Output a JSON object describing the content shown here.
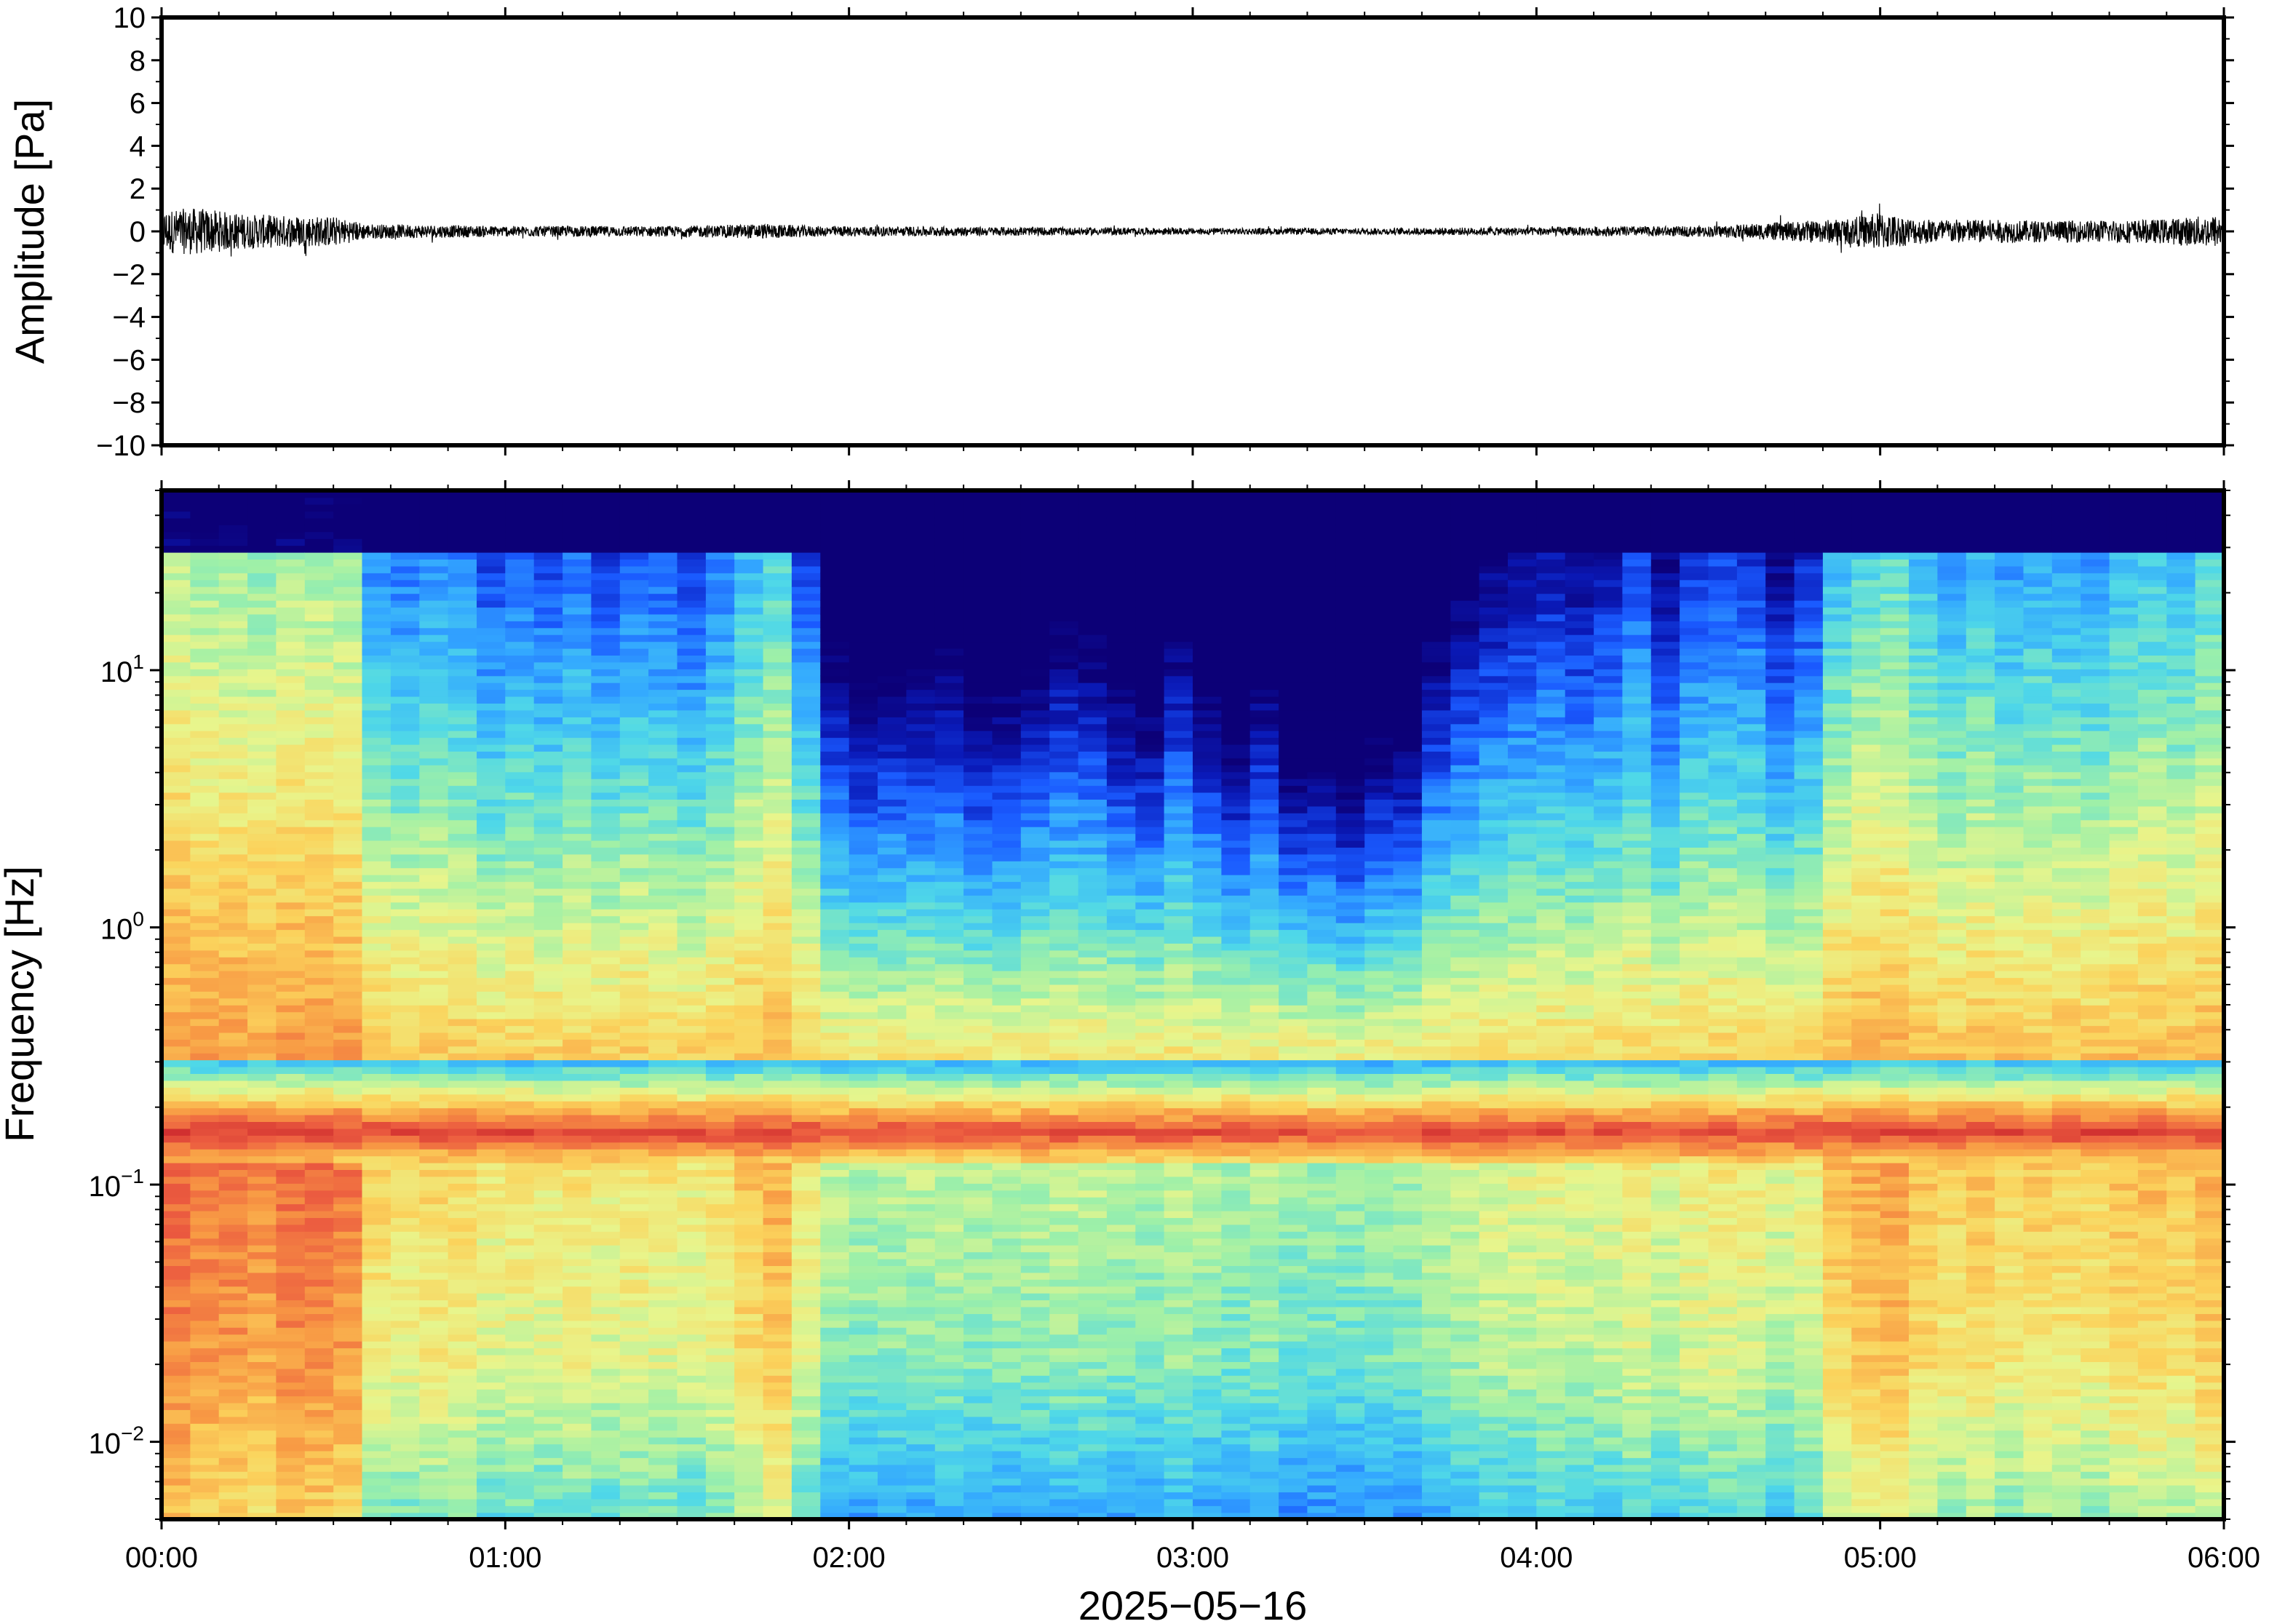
{
  "chart_data": [
    {
      "type": "line",
      "ylabel": "Amplitude [Pa]",
      "ylim": [
        -10,
        10
      ],
      "yticks": [
        "10",
        "8",
        "6",
        "4",
        "2",
        "0",
        "−2",
        "−4",
        "−6",
        "−8",
        "−10"
      ],
      "ytick_values": [
        10,
        8,
        6,
        4,
        2,
        0,
        -2,
        -4,
        -6,
        -8,
        -10
      ],
      "xlim_hours": [
        0,
        6
      ],
      "x_envelope_hours": [
        0,
        0.1,
        0.25,
        0.5,
        0.6,
        1.0,
        1.5,
        1.75,
        1.9,
        2.5,
        3.0,
        3.5,
        4.0,
        4.5,
        4.9,
        5.0,
        5.1,
        5.5,
        5.8,
        6.0
      ],
      "envelope_pa": [
        1.0,
        1.1,
        0.8,
        0.7,
        0.35,
        0.25,
        0.25,
        0.35,
        0.25,
        0.2,
        0.15,
        0.15,
        0.2,
        0.25,
        0.6,
        0.9,
        0.6,
        0.5,
        0.55,
        0.8
      ],
      "series": [
        {
          "color": "#000000"
        }
      ]
    },
    {
      "type": "heatmap",
      "ylabel": "Frequency [Hz]",
      "yscale": "log",
      "ylim": [
        0.005,
        50
      ],
      "yticks": [
        {
          "value": 10,
          "base": "10",
          "exp": "1"
        },
        {
          "value": 1,
          "base": "10",
          "exp": "0"
        },
        {
          "value": 0.1,
          "base": "10",
          "exp": "−1"
        },
        {
          "value": 0.01,
          "base": "10",
          "exp": "−2"
        }
      ],
      "xlabel": "2025−05−16",
      "xticks": [
        "00:00",
        "01:00",
        "02:00",
        "03:00",
        "04:00",
        "05:00",
        "06:00"
      ],
      "xtick_hours": [
        0,
        1,
        2,
        3,
        4,
        5,
        6
      ],
      "colormap": "jet",
      "colormap_stops": [
        "#0c0077",
        "#0a1ab8",
        "#1a5aff",
        "#33a8ff",
        "#4fd8e8",
        "#9ef0a8",
        "#e8f58c",
        "#fbd35c",
        "#f89a44",
        "#ec5c40",
        "#d13030"
      ],
      "microbarom_peak_hz": 0.16,
      "energetic_periods_hours": [
        [
          0,
          0.6
        ],
        [
          1.7,
          1.85
        ],
        [
          4.9,
          5.1
        ],
        [
          5.8,
          6.0
        ]
      ],
      "quiet_period_hours": [
        1.9,
        4.8
      ]
    }
  ]
}
